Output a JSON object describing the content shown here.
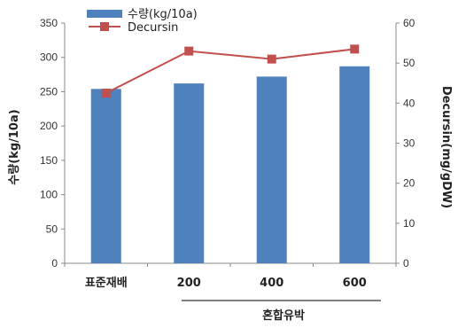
{
  "chart_data": {
    "type": "bar",
    "categories": [
      "표준재배",
      "200",
      "400",
      "600"
    ],
    "group_label": "혼합유박",
    "series": [
      {
        "name": "수량(kg/10a)",
        "kind": "bar",
        "axis": "left",
        "values": [
          254,
          262,
          272,
          287
        ],
        "color": "#4f81bd"
      },
      {
        "name": "Decursin",
        "kind": "line",
        "axis": "right",
        "values": [
          42.5,
          53,
          51,
          53.5
        ],
        "color": "#c0504d"
      }
    ],
    "ylabel": "수량(kg/10a)",
    "y2label": "Decursin(mg/gDW)",
    "ylim": [
      0,
      350
    ],
    "y2lim": [
      0,
      60
    ],
    "yticks": [
      "0",
      "50",
      "100",
      "150",
      "200",
      "250",
      "300",
      "350"
    ],
    "y2ticks": [
      "0",
      "10",
      "20",
      "30",
      "40",
      "50",
      "60"
    ],
    "grid": false,
    "legend_position": "top-left"
  }
}
